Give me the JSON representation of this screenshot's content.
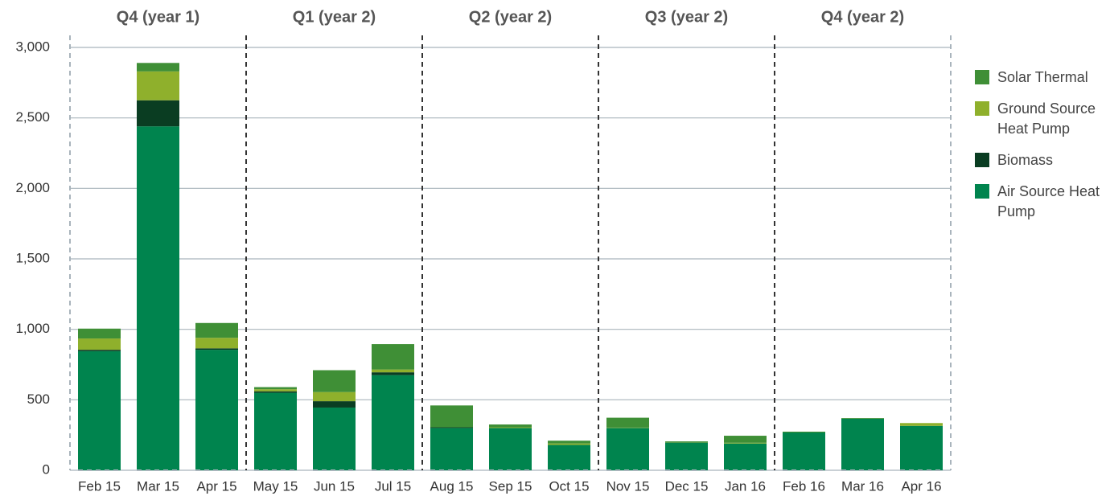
{
  "chart_data": {
    "type": "stacked_bar",
    "groups": [
      "Q4 (year 1)",
      "Q1 (year 2)",
      "Q2 (year 2)",
      "Q3 (year 2)",
      "Q4 (year 2)"
    ],
    "categories": [
      "Feb 15",
      "Mar 15",
      "Apr 15",
      "May 15",
      "Jun 15",
      "Jul 15",
      "Aug 15",
      "Sep 15",
      "Oct 15",
      "Nov 15",
      "Dec 15",
      "Jan 16",
      "Feb 16",
      "Mar 16",
      "Apr 16"
    ],
    "series": [
      {
        "name": "Air Source Heat Pump",
        "color": "#00844e",
        "values": [
          845,
          2440,
          855,
          550,
          445,
          675,
          300,
          300,
          180,
          300,
          195,
          190,
          268,
          365,
          315
        ]
      },
      {
        "name": "Biomass",
        "color": "#0a3d22",
        "values": [
          10,
          185,
          10,
          10,
          45,
          20,
          5,
          0,
          0,
          0,
          0,
          0,
          0,
          0,
          0
        ]
      },
      {
        "name": "Ground Source Heat Pump",
        "color": "#8fb02c",
        "values": [
          80,
          205,
          75,
          15,
          65,
          20,
          0,
          5,
          10,
          3,
          0,
          5,
          0,
          0,
          20
        ]
      },
      {
        "name": "Solar Thermal",
        "color": "#3f8f36",
        "values": [
          70,
          60,
          105,
          15,
          155,
          180,
          155,
          20,
          20,
          70,
          10,
          50,
          6,
          5,
          0
        ]
      }
    ],
    "ylim": [
      0,
      3000
    ],
    "yticks": [
      0,
      500,
      {
        "value": 1000,
        "label": "1,000"
      },
      {
        "value": 1500,
        "label": "1,500"
      },
      {
        "value": 2000,
        "label": "2,000"
      },
      {
        "value": 2500,
        "label": "2,500"
      },
      {
        "value": 3000,
        "label": "3,000"
      }
    ],
    "grid": true
  }
}
